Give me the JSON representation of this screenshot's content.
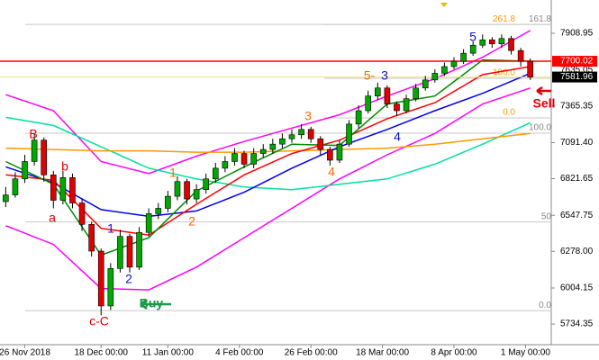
{
  "chart_data": {
    "type": "candlestick",
    "up_color": "#00a800",
    "down_color": "#e00000",
    "ylim": [
      5580,
      8158
    ],
    "xlim": [
      -0.6,
      57.2
    ],
    "yticks": [
      {
        "value": 7908.95,
        "label": "7908.95"
      },
      {
        "value": 7365.35,
        "label": "7365.35"
      },
      {
        "value": 7091.4,
        "label": "7091.40"
      },
      {
        "value": 6821.65,
        "label": "6821.65"
      },
      {
        "value": 6547.75,
        "label": "6547.75"
      },
      {
        "value": 6278.0,
        "label": "6278.00"
      },
      {
        "value": 6004.15,
        "label": "6004.15"
      },
      {
        "value": 5734.35,
        "label": "5734.35"
      }
    ],
    "xticks": [
      {
        "value": 2,
        "label": "26 Nov 2018"
      },
      {
        "value": 10,
        "label": "18 Dec 00:00"
      },
      {
        "value": 17,
        "label": "11 Jan 00:00"
      },
      {
        "value": 24.5,
        "label": "4 Feb 00:00"
      },
      {
        "value": 32,
        "label": "26 Feb 00:00"
      },
      {
        "value": 39.5,
        "label": "18 Mar 00:00"
      },
      {
        "value": 47,
        "label": "8 Apr 00:00"
      },
      {
        "value": 54.5,
        "label": "1 May 00:00"
      }
    ],
    "open": [
      6650,
      6700,
      6820,
      6950,
      7110,
      6850,
      6660,
      6830,
      6640,
      6480,
      6280,
      5870,
      6150,
      6390,
      6160,
      6420,
      6560,
      6600,
      6690,
      6800,
      6670,
      6740,
      6820,
      6900,
      6950,
      7010,
      6930,
      7010,
      7040,
      7080,
      7120,
      7150,
      7190,
      7120,
      7040,
      6960,
      7080,
      7230,
      7330,
      7440,
      7500,
      7380,
      7330,
      7420,
      7500,
      7560,
      7610,
      7660,
      7700,
      7760,
      7820,
      7860,
      7830,
      7870,
      7780,
      7700
    ],
    "high": [
      6760,
      6870,
      7000,
      7160,
      7130,
      6880,
      6880,
      6860,
      6670,
      6500,
      6300,
      6190,
      6440,
      6410,
      6460,
      6600,
      6640,
      6730,
      6840,
      6820,
      6780,
      6860,
      6940,
      6990,
      7050,
      7030,
      7050,
      7080,
      7120,
      7160,
      7190,
      7230,
      7210,
      7140,
      7060,
      7110,
      7260,
      7370,
      7480,
      7540,
      7520,
      7400,
      7450,
      7530,
      7590,
      7640,
      7690,
      7730,
      7790,
      7850,
      7900,
      7880,
      7900,
      7890,
      7800,
      7720
    ],
    "low": [
      6610,
      6680,
      6790,
      6920,
      6800,
      6600,
      6630,
      6600,
      6430,
      6240,
      5800,
      5840,
      6120,
      6120,
      6140,
      6390,
      6520,
      6570,
      6660,
      6630,
      6640,
      6710,
      6790,
      6870,
      6920,
      6900,
      6900,
      6980,
      7010,
      7050,
      7090,
      7120,
      7090,
      7000,
      6920,
      6940,
      7060,
      7200,
      7310,
      7410,
      7350,
      7290,
      7310,
      7400,
      7480,
      7540,
      7590,
      7640,
      7680,
      7740,
      7800,
      7800,
      7800,
      7750,
      7660,
      7560
    ],
    "close": [
      6700,
      6820,
      6950,
      7110,
      6850,
      6660,
      6830,
      6640,
      6480,
      6280,
      5870,
      6150,
      6390,
      6160,
      6420,
      6560,
      6600,
      6690,
      6800,
      6670,
      6740,
      6820,
      6900,
      6950,
      7010,
      6930,
      7010,
      7040,
      7080,
      7120,
      7150,
      7190,
      7120,
      7040,
      6960,
      7080,
      7230,
      7330,
      7440,
      7500,
      7380,
      7330,
      7420,
      7500,
      7560,
      7610,
      7660,
      7700,
      7760,
      7820,
      7860,
      7830,
      7870,
      7780,
      7700,
      7581.96
    ],
    "lines": [
      {
        "color": "#ff00ff",
        "x": [
          0,
          5,
          10,
          15,
          20,
          25,
          30,
          35,
          40,
          45,
          50,
          55
        ],
        "values": [
          7450,
          7330,
          6950,
          6860,
          6990,
          7100,
          7200,
          7300,
          7440,
          7570,
          7730,
          7930
        ]
      },
      {
        "color": "#ff00ff",
        "x": [
          0,
          5,
          10,
          15,
          20,
          25,
          30,
          35,
          40,
          45,
          50,
          55
        ],
        "values": [
          6470,
          6330,
          6000,
          5990,
          6160,
          6380,
          6600,
          6820,
          7000,
          7160,
          7380,
          7500
        ]
      },
      {
        "color": "#00e0a0",
        "x": [
          0,
          5,
          10,
          15,
          20,
          25,
          30,
          35,
          40,
          45,
          50,
          55
        ],
        "values": [
          7280,
          7220,
          7060,
          6900,
          6820,
          6760,
          6740,
          6780,
          6820,
          6930,
          7080,
          7240
        ]
      },
      {
        "color": "#ff9900",
        "x": [
          0,
          5,
          10,
          15,
          20,
          25,
          30,
          35,
          40,
          45,
          50,
          55
        ],
        "values": [
          7050,
          7040,
          7030,
          7030,
          7020,
          7020,
          7030,
          7040,
          7050,
          7080,
          7120,
          7160
        ]
      },
      {
        "color": "#0000ee",
        "x": [
          0,
          5,
          10,
          15,
          20,
          25,
          30,
          35,
          40,
          45,
          50,
          55
        ],
        "values": [
          6910,
          6790,
          6590,
          6540,
          6580,
          6720,
          6900,
          7060,
          7190,
          7330,
          7460,
          7610
        ]
      },
      {
        "color": "#ff0000",
        "x": [
          0,
          5,
          10,
          15,
          20,
          25,
          30,
          35,
          40,
          45,
          50,
          55
        ],
        "values": [
          6850,
          6810,
          6450,
          6400,
          6630,
          6850,
          7010,
          7110,
          7270,
          7390,
          7600,
          7660
        ]
      },
      {
        "color": "#008800",
        "x": [
          0,
          5,
          10,
          15,
          20,
          25,
          30,
          35,
          40,
          45,
          50,
          55
        ],
        "values": [
          6950,
          6780,
          6250,
          6380,
          6730,
          6910,
          7080,
          7070,
          7380,
          7440,
          7710,
          7700
        ]
      }
    ],
    "fib_gray": {
      "color": "#888888",
      "levels": [
        {
          "value": 7975,
          "label": "161.8"
        },
        {
          "value": 7162,
          "label": "100.0"
        },
        {
          "value": 6498,
          "label": "50"
        },
        {
          "value": 5835,
          "label": "0.0"
        }
      ]
    },
    "fib_orange": {
      "color": "#ff9900",
      "levels": [
        {
          "value": 7975,
          "label": "261.8"
        },
        {
          "value": 7572,
          "label": "100.0"
        },
        {
          "value": 7276,
          "label": "0.0"
        }
      ]
    },
    "price_labels": [
      {
        "value": 7700.02,
        "color": "#ff0000"
      },
      {
        "value": 7635.05,
        "color": "#ffffff"
      },
      {
        "value": 7581.96,
        "color": "#000000"
      }
    ],
    "annotations": [
      "B",
      "a",
      "b",
      "c-C",
      "1",
      "2",
      "1",
      "2",
      "3",
      "4",
      "5-",
      "3",
      "4",
      "5",
      "Buy",
      "Sell"
    ]
  }
}
